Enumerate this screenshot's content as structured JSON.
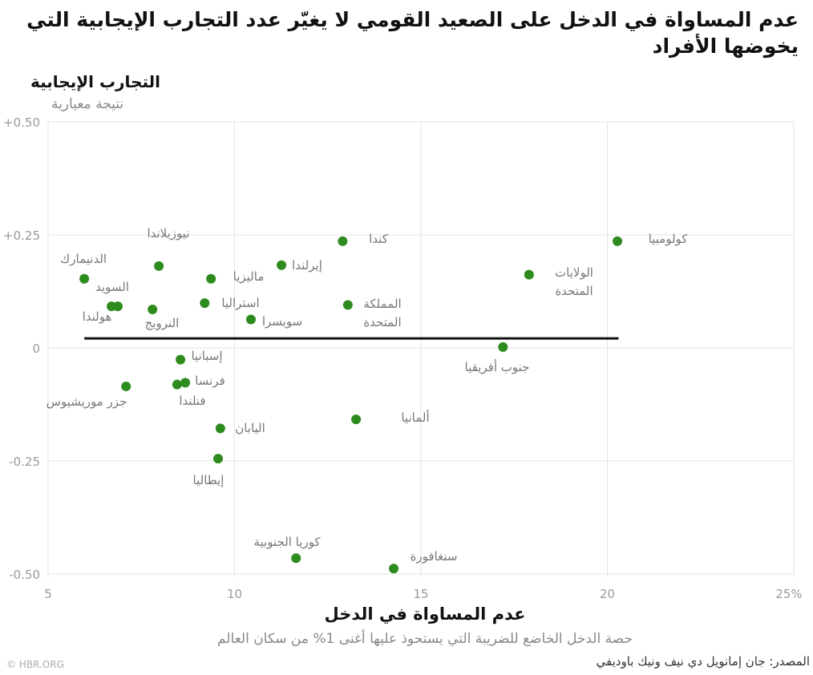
{
  "title": "عدم المساواة في الدخل على الصعيد القومي لا يغيّر عدد التجارب الإيجابية التي يخوضها الأفراد",
  "credit": "© HBR.ORG",
  "source": "المصدر: جان إمانويل دي نيف ونيك باوديفي",
  "chart_data": {
    "type": "scatter",
    "title": "عدم المساواة في الدخل على الصعيد القومي لا يغيّر عدد التجارب الإيجابية التي يخوضها الأفراد",
    "ylabel": "التجارب الإيجابية",
    "ylabel_sub": "نتيجة معيارية",
    "xlabel": "عدم المساواة في الدخل",
    "xlabel_sub": "حصة الدخل الخاضع للضريبة التي يستحوذ عليها أغنى 1% من سكان العالم",
    "xlim": [
      5,
      25
    ],
    "ylim": [
      -0.5,
      0.5
    ],
    "xticks": [
      {
        "v": 5,
        "label": "5"
      },
      {
        "v": 10,
        "label": "10"
      },
      {
        "v": 15,
        "label": "15"
      },
      {
        "v": 20,
        "label": "20"
      },
      {
        "v": 25,
        "label": "25%"
      }
    ],
    "yticks": [
      {
        "v": 0.5,
        "label": "+0.50"
      },
      {
        "v": 0.25,
        "label": "+0.25"
      },
      {
        "v": 0,
        "label": "0"
      },
      {
        "v": -0.25,
        "label": "-0.25"
      },
      {
        "v": -0.5,
        "label": "-0.50"
      }
    ],
    "grid": true,
    "point_color": "#2e8b1e",
    "trend_line": {
      "x": [
        5.97,
        20.3
      ],
      "y": [
        0.021,
        0.021
      ],
      "color": "#111111"
    },
    "points": [
      {
        "label": [
          "كولومبيا"
        ],
        "x": 20.27,
        "y": 0.236
      },
      {
        "label": [
          "كندا"
        ],
        "x": 12.9,
        "y": 0.236
      },
      {
        "label": [
          "الولايات",
          "المتحدة"
        ],
        "x": 17.9,
        "y": 0.162
      },
      {
        "label": [
          "المملكة",
          "المتحدة"
        ],
        "x": 13.04,
        "y": 0.095
      },
      {
        "label": [
          "إيرلندا"
        ],
        "x": 11.26,
        "y": 0.183
      },
      {
        "label": [
          "ماليزيا"
        ],
        "x": 9.37,
        "y": 0.153
      },
      {
        "label": [
          "استراليا"
        ],
        "x": 9.2,
        "y": 0.099
      },
      {
        "label": [
          "سويسرا"
        ],
        "x": 10.44,
        "y": 0.063
      },
      {
        "label": [
          "نيوزيلاندا"
        ],
        "x": 7.97,
        "y": 0.181
      },
      {
        "label": [
          "الدنيمارك"
        ],
        "x": 5.97,
        "y": 0.153
      },
      {
        "label": [
          "السويد"
        ],
        "x": 6.87,
        "y": 0.092
      },
      {
        "label": [
          "هولندا"
        ],
        "x": 6.7,
        "y": 0.092
      },
      {
        "label": [
          "النرويج"
        ],
        "x": 7.8,
        "y": 0.085
      },
      {
        "label": [
          "جنوب أفريقيا"
        ],
        "x": 17.2,
        "y": 0.002
      },
      {
        "label": [
          "إسبانيا"
        ],
        "x": 8.55,
        "y": -0.026
      },
      {
        "label": [
          "فرنسا"
        ],
        "x": 8.68,
        "y": -0.077
      },
      {
        "label": [
          "فنلندا"
        ],
        "x": 8.46,
        "y": -0.081
      },
      {
        "label": [
          "جزر موريشيوس"
        ],
        "x": 7.09,
        "y": -0.085
      },
      {
        "label": [
          "ألمانيا"
        ],
        "x": 13.26,
        "y": -0.158
      },
      {
        "label": [
          "اليابان"
        ],
        "x": 9.62,
        "y": -0.178
      },
      {
        "label": [
          "إيطاليا"
        ],
        "x": 9.56,
        "y": -0.245
      },
      {
        "label": [
          "كوريا الجنوبية"
        ],
        "x": 11.65,
        "y": -0.465
      },
      {
        "label": [
          "سنغافورة"
        ],
        "x": 14.27,
        "y": -0.488
      }
    ]
  }
}
